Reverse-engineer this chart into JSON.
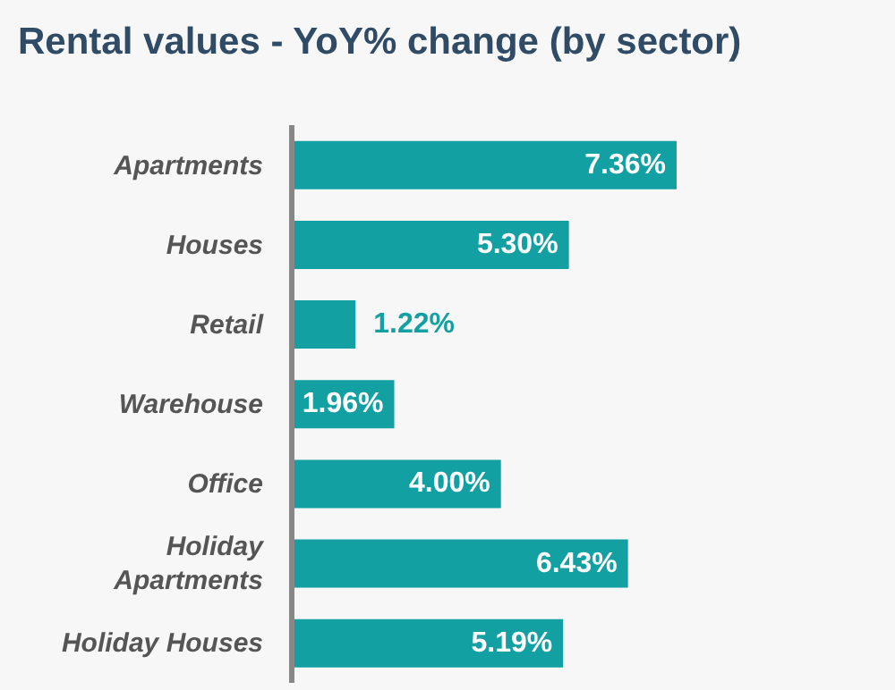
{
  "chart_data": {
    "type": "bar",
    "orientation": "horizontal",
    "title": "Rental values - YoY% change (by sector)",
    "categories": [
      "Apartments",
      "Houses",
      "Retail",
      "Warehouse",
      "Office",
      "Holiday Apartments",
      "Holiday Houses"
    ],
    "values": [
      7.36,
      5.3,
      1.22,
      1.96,
      4.0,
      6.43,
      5.19
    ],
    "value_labels": [
      "7.36%",
      "5.30%",
      "1.22%",
      "1.96%",
      "4.00%",
      "6.43%",
      "5.19%"
    ],
    "color": "#12a0a3"
  }
}
